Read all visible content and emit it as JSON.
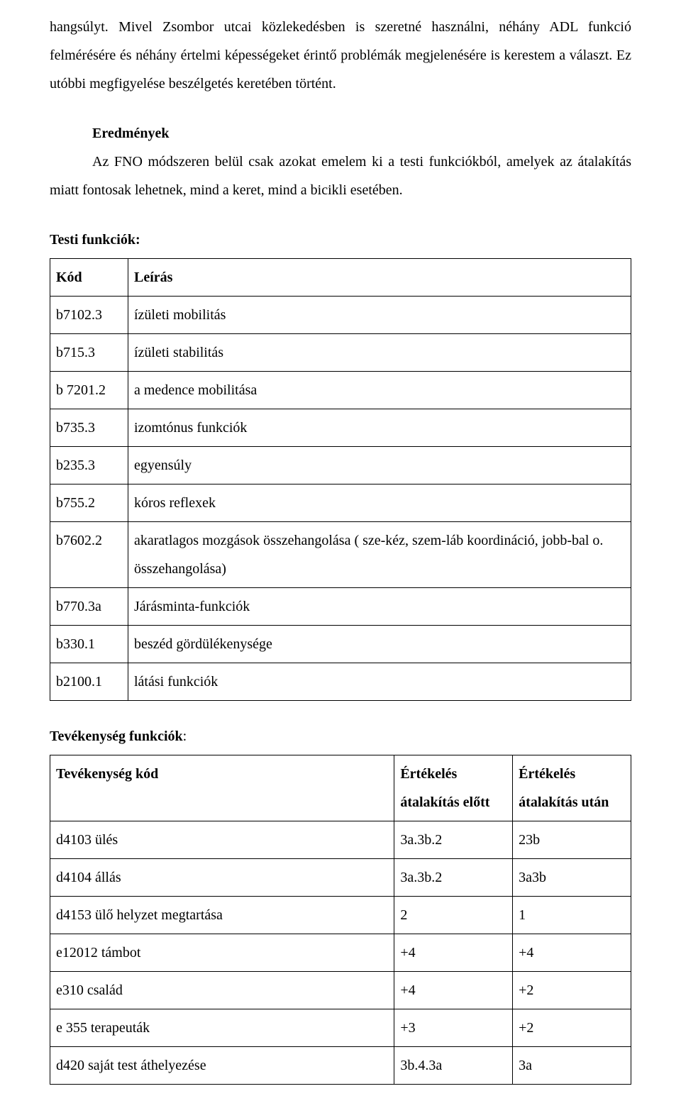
{
  "intro_paragraphs": [
    "hangsúlyt. Mivel Zsombor utcai közlekedésben is szeretné használni, néhány ADL funkció felmérésére és néhány értelmi képességeket érintő problémák megjelenésére is kerestem a választ. Ez utóbbi megfigyelése beszélgetés keretében történt."
  ],
  "results_heading": "Eredmények",
  "results_text": "Az FNO módszeren belül csak azokat emelem ki a testi funkciókból, amelyek az átalakítás miatt fontosak lehetnek, mind a keret, mind a bicikli esetében.",
  "table1_heading": "Testi funkciók:",
  "table1": {
    "columns": [
      "Kód",
      "Leírás"
    ],
    "rows": [
      [
        "b7102.3",
        "ízületi mobilitás"
      ],
      [
        "b715.3",
        "ízületi stabilitás"
      ],
      [
        "b 7201.2",
        "a medence mobilitása"
      ],
      [
        "b735.3",
        "izomtónus funkciók"
      ],
      [
        "b235.3",
        "egyensúly"
      ],
      [
        "b755.2",
        "kóros reflexek"
      ],
      [
        "b7602.2",
        "akaratlagos mozgások összehangolása ( sze-kéz, szem-láb koordináció, jobb-bal o. összehangolása)"
      ],
      [
        "b770.3a",
        "Járásminta-funkciók"
      ],
      [
        "b330.1",
        "beszéd gördülékenysége"
      ],
      [
        "b2100.1",
        "látási funkciók"
      ]
    ]
  },
  "table2_heading_bold": "Tevékenység funkciók",
  "table2_heading_suffix": ":",
  "table2": {
    "header": {
      "c1": "Tevékenység kód",
      "c2": "Értékelés átalakítás előtt",
      "c3": "Értékelés átalakítás után"
    },
    "rows": [
      [
        "d4103 ülés",
        "3a.3b.2",
        "23b"
      ],
      [
        "d4104 állás",
        "3a.3b.2",
        "3a3b"
      ],
      [
        "d4153 ülő helyzet megtartása",
        "2",
        "1"
      ],
      [
        "e12012 támbot",
        "+4",
        "+4"
      ],
      [
        "e310 család",
        "+4",
        "+2"
      ],
      [
        "e 355 terapeuták",
        "+3",
        "+2"
      ],
      [
        "d420 saját test áthelyezése",
        "3b.4.3a",
        "3a"
      ]
    ]
  }
}
